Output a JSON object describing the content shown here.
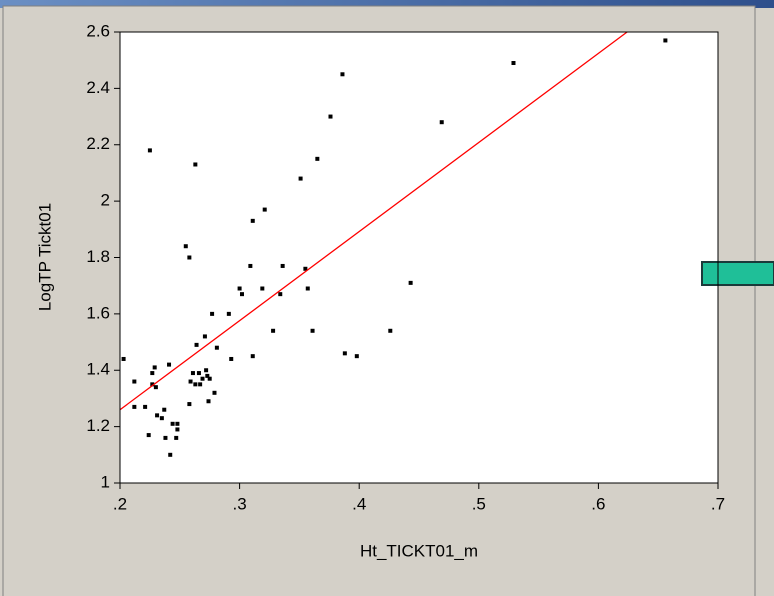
{
  "chart_data": {
    "type": "scatter",
    "x_label": "Ht_TICKT01_m",
    "y_label": "LogTP Tickt01",
    "series": [
      {
        "color": "#000000",
        "x": [
          0.203,
          0.212,
          0.212,
          0.221,
          0.224,
          0.225,
          0.227,
          0.229,
          0.227,
          0.23,
          0.231,
          0.235,
          0.237,
          0.238,
          0.241,
          0.242,
          0.244,
          0.247,
          0.248,
          0.248,
          0.255,
          0.258,
          0.258,
          0.259,
          0.261,
          0.263,
          0.264,
          0.263,
          0.266,
          0.267,
          0.269,
          0.271,
          0.272,
          0.273,
          0.274,
          0.275,
          0.277,
          0.279,
          0.281,
          0.291,
          0.293,
          0.3,
          0.302,
          0.309,
          0.311,
          0.311,
          0.319,
          0.321,
          0.328,
          0.334,
          0.336,
          0.351,
          0.355,
          0.357,
          0.361,
          0.365,
          0.376,
          0.386,
          0.388,
          0.398,
          0.426,
          0.443,
          0.469,
          0.529,
          0.656
        ],
        "values": [
          1.44,
          1.36,
          1.27,
          1.27,
          1.17,
          2.18,
          1.39,
          1.41,
          1.35,
          1.34,
          1.24,
          1.23,
          1.26,
          1.16,
          1.42,
          1.1,
          1.21,
          1.16,
          1.21,
          1.19,
          1.84,
          1.8,
          1.28,
          1.36,
          1.39,
          2.13,
          1.49,
          1.35,
          1.39,
          1.35,
          1.37,
          1.52,
          1.4,
          1.38,
          1.29,
          1.37,
          1.6,
          1.32,
          1.48,
          1.6,
          1.44,
          1.69,
          1.67,
          1.77,
          1.93,
          1.45,
          1.69,
          1.97,
          1.54,
          1.67,
          1.77,
          2.08,
          1.76,
          1.69,
          1.54,
          2.15,
          2.3,
          2.45,
          1.46,
          1.45,
          1.54,
          1.71,
          2.28,
          2.49,
          2.57
        ]
      }
    ],
    "fit_line": {
      "color": "#ff0000",
      "x": [
        0.2,
        0.624
      ],
      "values": [
        1.26,
        2.6
      ]
    },
    "xlim": [
      0.2,
      0.7
    ],
    "xticks": [
      {
        "value": 0.2,
        "label": ".2"
      },
      {
        "value": 0.3,
        "label": ".3"
      },
      {
        "value": 0.4,
        "label": ".4"
      },
      {
        "value": 0.5,
        "label": ".5"
      },
      {
        "value": 0.6,
        "label": ".6"
      },
      {
        "value": 0.7,
        "label": ".7"
      }
    ],
    "ylim": [
      1,
      2.6
    ],
    "yticks": [
      1,
      1.2,
      1.4,
      1.6,
      1.8,
      2,
      2.2,
      2.4,
      2.6
    ]
  }
}
